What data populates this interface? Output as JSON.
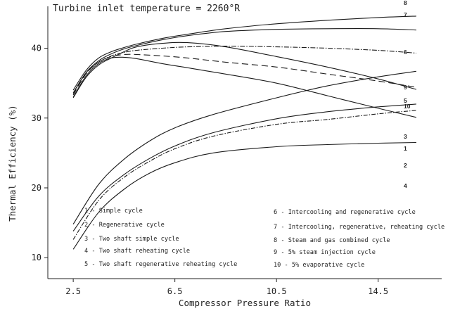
{
  "chart_data": {
    "type": "line",
    "title": "Turbine inlet temperature = 2260°R",
    "xlabel": "Compressor Pressure Ratio",
    "ylabel": "Thermal Efficiency (%)",
    "xlim": [
      1.5,
      17
    ],
    "ylim": [
      7,
      46
    ],
    "xticks": [
      "2.5",
      "6.5",
      "10.5",
      "14.5"
    ],
    "yticks": [
      "10",
      "20",
      "30",
      "40"
    ],
    "grid": false,
    "legend_placement": "bottom",
    "series": [
      {
        "id": "1",
        "name": "1 - Simple cycle",
        "dash": "6 2 1.5 2",
        "x": [
          2.5,
          3.5,
          4.5,
          5.5,
          6.5,
          8,
          10.5,
          12.5,
          14.5,
          16
        ],
        "y": [
          12.6,
          18.2,
          21.5,
          23.8,
          25.6,
          27.4,
          29.1,
          29.8,
          30.6,
          31.1
        ]
      },
      {
        "id": "2",
        "name": "2 - Regenerative cycle",
        "dash": "",
        "x": [
          2.5,
          3,
          3.5,
          4,
          4.5,
          5,
          6,
          7,
          8.5,
          10.5,
          12.5,
          14.5,
          16
        ],
        "y": [
          33.0,
          36.0,
          37.8,
          38.6,
          38.7,
          38.5,
          37.8,
          37.2,
          36.3,
          35.0,
          33.2,
          31.4,
          30.1
        ]
      },
      {
        "id": "3",
        "name": "3 - Two shaft simple cycle",
        "dash": "",
        "x": [
          2.5,
          3.5,
          4.5,
          5.5,
          6.5,
          8,
          10.5,
          12.5,
          14.5,
          16
        ],
        "y": [
          13.8,
          18.8,
          21.9,
          24.2,
          26.0,
          27.9,
          29.9,
          30.9,
          31.6,
          32.0
        ]
      },
      {
        "id": "4",
        "name": "4 - Two shaft reheating cycle",
        "dash": "",
        "x": [
          2.5,
          3.5,
          4.5,
          5.5,
          6.5,
          8,
          10.5,
          12.5,
          14.5,
          16
        ],
        "y": [
          11.2,
          16.5,
          19.8,
          22.1,
          23.6,
          25.0,
          25.9,
          26.2,
          26.4,
          26.5
        ]
      },
      {
        "id": "5",
        "name": "5 - Two shaft regenerative reheating cycle",
        "dash": "9 5",
        "x": [
          2.5,
          3,
          3.5,
          4,
          4.5,
          5,
          6,
          7,
          8.5,
          10.5,
          12.5,
          14.5,
          16
        ],
        "y": [
          33.3,
          36.3,
          38.0,
          38.8,
          39.1,
          39.1,
          38.9,
          38.6,
          38.0,
          37.3,
          36.3,
          35.3,
          34.4
        ]
      },
      {
        "id": "6",
        "name": "6 - Intercooling and regenerative cycle",
        "dash": "7 2 1.5 2",
        "x": [
          2.5,
          3,
          3.5,
          4,
          4.5,
          5,
          6,
          7,
          8.5,
          10.5,
          12.5,
          14.5,
          16
        ],
        "y": [
          33.5,
          36.4,
          38.0,
          38.9,
          39.4,
          39.7,
          40.0,
          40.2,
          40.3,
          40.2,
          40.0,
          39.7,
          39.3
        ]
      },
      {
        "id": "7",
        "name": "7 - Intercooling, regenerative, reheating cycle",
        "dash": "",
        "x": [
          2.5,
          3,
          3.5,
          4,
          4.5,
          5,
          6,
          7,
          8.5,
          10.5,
          12.5,
          14.5,
          16
        ],
        "y": [
          33.6,
          36.5,
          38.2,
          39.2,
          39.9,
          40.4,
          41.2,
          41.8,
          42.4,
          42.7,
          42.8,
          42.8,
          42.6
        ]
      },
      {
        "id": "8",
        "name": "8 - Steam and gas combined cycle",
        "dash": "",
        "x": [
          2.5,
          3,
          3.5,
          4,
          4.5,
          5,
          6,
          7,
          8.5,
          10.5,
          12.5,
          14.5,
          16
        ],
        "y": [
          34.0,
          36.8,
          38.6,
          39.5,
          40.1,
          40.6,
          41.4,
          42.0,
          42.8,
          43.5,
          44.0,
          44.4,
          44.6
        ]
      },
      {
        "id": "9",
        "name": "9 - 5% steam injection cycle",
        "dash": "",
        "x": [
          2.5,
          3.5,
          4.5,
          5.5,
          6.5,
          8,
          10.5,
          12.5,
          14.5,
          16
        ],
        "y": [
          14.8,
          20.5,
          24.1,
          26.7,
          28.6,
          30.5,
          32.9,
          34.6,
          35.9,
          36.7
        ]
      },
      {
        "id": "10",
        "name": "10 - 5% evaporative cycle",
        "dash": "",
        "x": [
          2.5,
          3,
          3.5,
          4,
          4.5,
          5,
          6,
          7,
          8.5,
          10.5,
          12.5,
          14.5,
          16
        ],
        "y": [
          32.9,
          35.8,
          37.6,
          38.6,
          39.5,
          40.2,
          40.7,
          40.8,
          40.2,
          38.8,
          37.3,
          35.6,
          34.1
        ]
      }
    ],
    "end_labels": [
      "8",
      "7",
      "6",
      "9",
      "5",
      "10",
      "3",
      "1",
      "2",
      "4"
    ],
    "legend_left": [
      "1 - Simple cycle",
      "2 - Regenerative cycle",
      "3 - Two shaft simple cycle",
      "4 - Two shaft reheating cycle",
      "5 - Two shaft regenerative reheating cycle"
    ],
    "legend_right": [
      "6 - Intercooling and regenerative cycle",
      "7 - Intercooling, regenerative, reheating cycle",
      "8 - Steam and gas combined cycle",
      "9 - 5% steam injection cycle",
      "10 - 5% evaporative cycle"
    ]
  }
}
